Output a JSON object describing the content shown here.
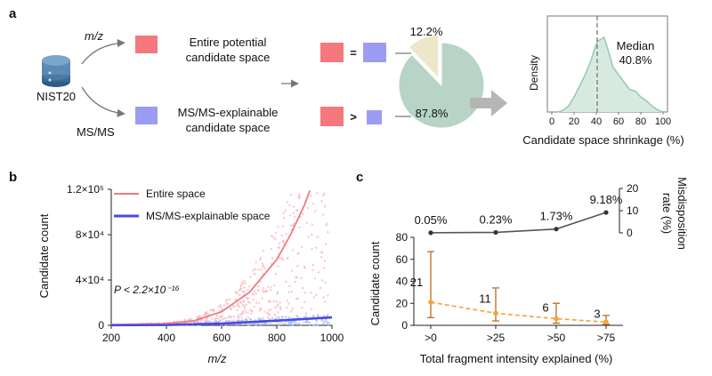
{
  "panel_labels": [
    "a",
    "b",
    "c"
  ],
  "panel_a": {
    "db_label": "NIST20",
    "arrow_mz_label": "m/z",
    "arrow_msms_label": "MS/MS",
    "entire_label_line1": "Entire potential",
    "entire_label_line2": "candidate space",
    "msms_label_line1": "MS/MS-explainable",
    "msms_label_line2": "candidate space",
    "equal_sign": "=",
    "greater_sign": ">",
    "pie_slices": [
      {
        "label": "12.2%",
        "value": 12.2,
        "color": "#ede7c9"
      },
      {
        "label": "87.8%",
        "value": 87.8,
        "color": "#b7d4c6"
      }
    ],
    "colors": {
      "entire": "#f4787c",
      "msms": "#9c9cf2",
      "db": "#3b6a96",
      "arrow": "#b5b5b5"
    }
  },
  "density_chart": {
    "ylabel": "Density",
    "xlabel": "Candidate space shrinkage (%)",
    "median_label": "Median",
    "median_value_label": "40.8%",
    "median": 40.8,
    "xlim": [
      0,
      100
    ],
    "ticks": [
      "0",
      "20",
      "40",
      "60",
      "80",
      "100"
    ],
    "curve_color": "#9cc9b3",
    "fill_color": "#d8eadf",
    "x": [
      5,
      10,
      15,
      20,
      25,
      30,
      35,
      38,
      41,
      44,
      47,
      50,
      55,
      60,
      65,
      70,
      75,
      80,
      85,
      90,
      95,
      100
    ],
    "density": [
      0.0,
      0.02,
      0.08,
      0.2,
      0.35,
      0.5,
      0.68,
      0.82,
      0.95,
      0.97,
      1.0,
      0.86,
      0.6,
      0.5,
      0.4,
      0.3,
      0.28,
      0.2,
      0.15,
      0.08,
      0.03,
      0.0
    ]
  },
  "chart_data": [
    {
      "type": "scatter",
      "panel": "b",
      "xlabel": "m/z",
      "ylabel": "Candidate count",
      "xlim": [
        200,
        1000
      ],
      "ylim": [
        0,
        120000
      ],
      "x_ticks": [
        "200",
        "400",
        "600",
        "800",
        "1000"
      ],
      "y_ticks": [
        "0",
        "4×10⁴",
        "8×10⁴",
        "1.2×10⁵"
      ],
      "annotation": "P < 2.2×10⁻¹⁶",
      "series": [
        {
          "name": "Entire space",
          "color": "#f07a7e",
          "fit_x": [
            200,
            400,
            500,
            600,
            700,
            800,
            850,
            900,
            920
          ],
          "fit_y": [
            600,
            1500,
            4000,
            12000,
            29000,
            58000,
            80000,
            106000,
            119000
          ]
        },
        {
          "name": "MS/MS-explainable space",
          "color": "#4a4ae6",
          "fit_x": [
            200,
            400,
            600,
            800,
            1000
          ],
          "fit_y": [
            100,
            300,
            1500,
            4200,
            7000
          ]
        }
      ]
    },
    {
      "type": "line",
      "panel": "c",
      "xlabel": "Total fragment intensity explained (%)",
      "categories": [
        ">0",
        ">25",
        ">50",
        ">75"
      ],
      "series": [
        {
          "axis": "top",
          "ylabel_line1": "Misdisposition",
          "ylabel_line2": "rate (%)",
          "ylim": [
            0,
            20
          ],
          "y_ticks": [
            "0",
            "10",
            "20"
          ],
          "color": "#555555",
          "values": [
            0.05,
            0.23,
            1.73,
            9.18
          ],
          "labels": [
            "0.05%",
            "0.23%",
            "1.73%",
            "9.18%"
          ]
        },
        {
          "axis": "bottom",
          "ylabel": "Candidate count",
          "ylim": [
            0,
            80
          ],
          "y_ticks": [
            "0",
            "20",
            "40",
            "60",
            "80"
          ],
          "color": "#f5a23c",
          "error_color": "#c06a1c",
          "values": [
            21,
            11,
            6,
            3
          ],
          "labels": [
            "21",
            "11",
            "6",
            "3"
          ],
          "err_low": [
            7,
            4,
            2,
            1
          ],
          "err_high": [
            67,
            34,
            20,
            9
          ]
        }
      ]
    }
  ]
}
